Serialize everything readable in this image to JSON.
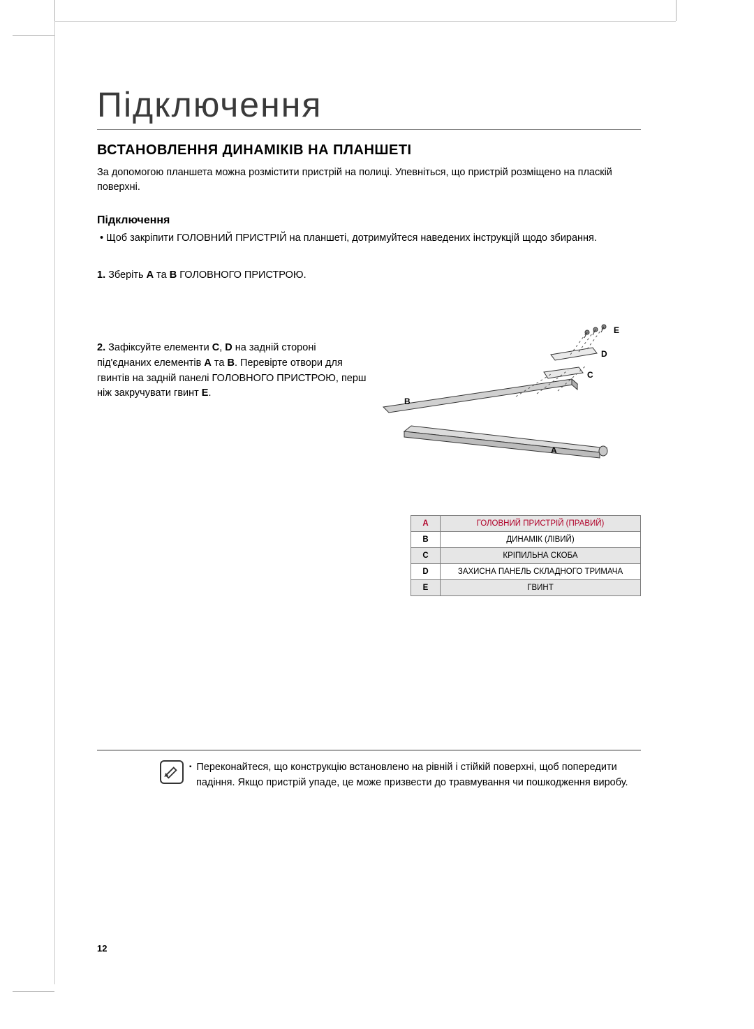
{
  "chapter_title": "Підключення",
  "section_title": "ВСТАНОВЛЕННЯ ДИНАМІКІВ НА ПЛАНШЕТІ",
  "intro": "За допомогою планшета можна розмістити пристрій на полиці. Упевніться, що пристрій розміщено на пласкій поверхні.",
  "subhead": "Підключення",
  "bullet": "Щоб закріпити ГОЛОВНИЙ ПРИСТРІЙ на планшеті, дотримуйтеся наведених інструкцій щодо збирання.",
  "step1_num": "1.",
  "step1_body": "Зберіть <b>A</b> та <b>B</b> ГОЛОВНОГО ПРИСТРОЮ.",
  "step2_num": "2.",
  "step2_body": "Зафіксуйте елементи <b>C</b>, <b>D</b> на задній стороні під'єднаних елементів <b>A</b> та <b>B</b>. Перевірте отвори для гвинтів на задній панелі ГОЛОВНОГО ПРИСТРОЮ, перш ніж закручувати гвинт <b>E</b>.",
  "parts": [
    {
      "key": "A",
      "label": "ГОЛОВНИЙ ПРИСТРІЙ (ПРАВИЙ)",
      "shade": true,
      "klass": "row-a"
    },
    {
      "key": "B",
      "label": "ДИНАМІК (ЛІВИЙ)",
      "shade": false,
      "klass": ""
    },
    {
      "key": "C",
      "label": "КРІПИЛЬНА СКОБА",
      "shade": true,
      "klass": ""
    },
    {
      "key": "D",
      "label": "ЗАХИСНА ПАНЕЛЬ СКЛАДНОГО ТРИМАЧА",
      "shade": false,
      "klass": ""
    },
    {
      "key": "E",
      "label": "ГВИНТ",
      "shade": true,
      "klass": ""
    }
  ],
  "note": "Переконайтеся, що конструкцію встановлено на рівній і стійкій поверхні, щоб попередити падіння. Якщо пристрій упаде, це може призвести до травмування чи пошкодження виробу.",
  "page_number": "12",
  "fig_labels": {
    "A": "A",
    "B": "B",
    "C": "C",
    "D": "D",
    "E": "E"
  }
}
